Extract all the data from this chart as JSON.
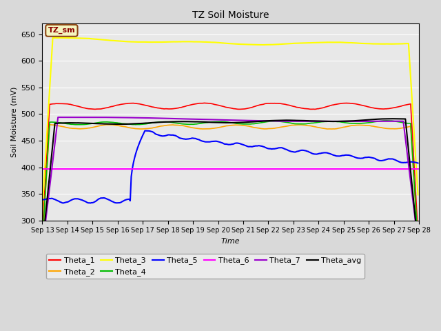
{
  "title": "TZ Soil Moisture",
  "xlabel": "Time",
  "ylabel": "Soil Moisture (mV)",
  "ylim": [
    300,
    670
  ],
  "yticks": [
    300,
    350,
    400,
    450,
    500,
    550,
    600,
    650
  ],
  "x_labels": [
    "Sep 13",
    "Sep 14",
    "Sep 15",
    "Sep 16",
    "Sep 17",
    "Sep 18",
    "Sep 19",
    "Sep 20",
    "Sep 21",
    "Sep 22",
    "Sep 23",
    "Sep 24",
    "Sep 25",
    "Sep 26",
    "Sep 27",
    "Sep 28"
  ],
  "background_color": "#d9d9d9",
  "plot_bg_color": "#e8e8e8",
  "series_colors": {
    "Theta_1": "#ff0000",
    "Theta_2": "#ffa500",
    "Theta_3": "#ffff00",
    "Theta_4": "#00bb00",
    "Theta_5": "#0000ff",
    "Theta_6": "#ff00ff",
    "Theta_7": "#9900cc",
    "Theta_avg": "#000000"
  },
  "legend_order": [
    "Theta_1",
    "Theta_2",
    "Theta_3",
    "Theta_4",
    "Theta_5",
    "Theta_6",
    "Theta_7",
    "Theta_avg"
  ]
}
